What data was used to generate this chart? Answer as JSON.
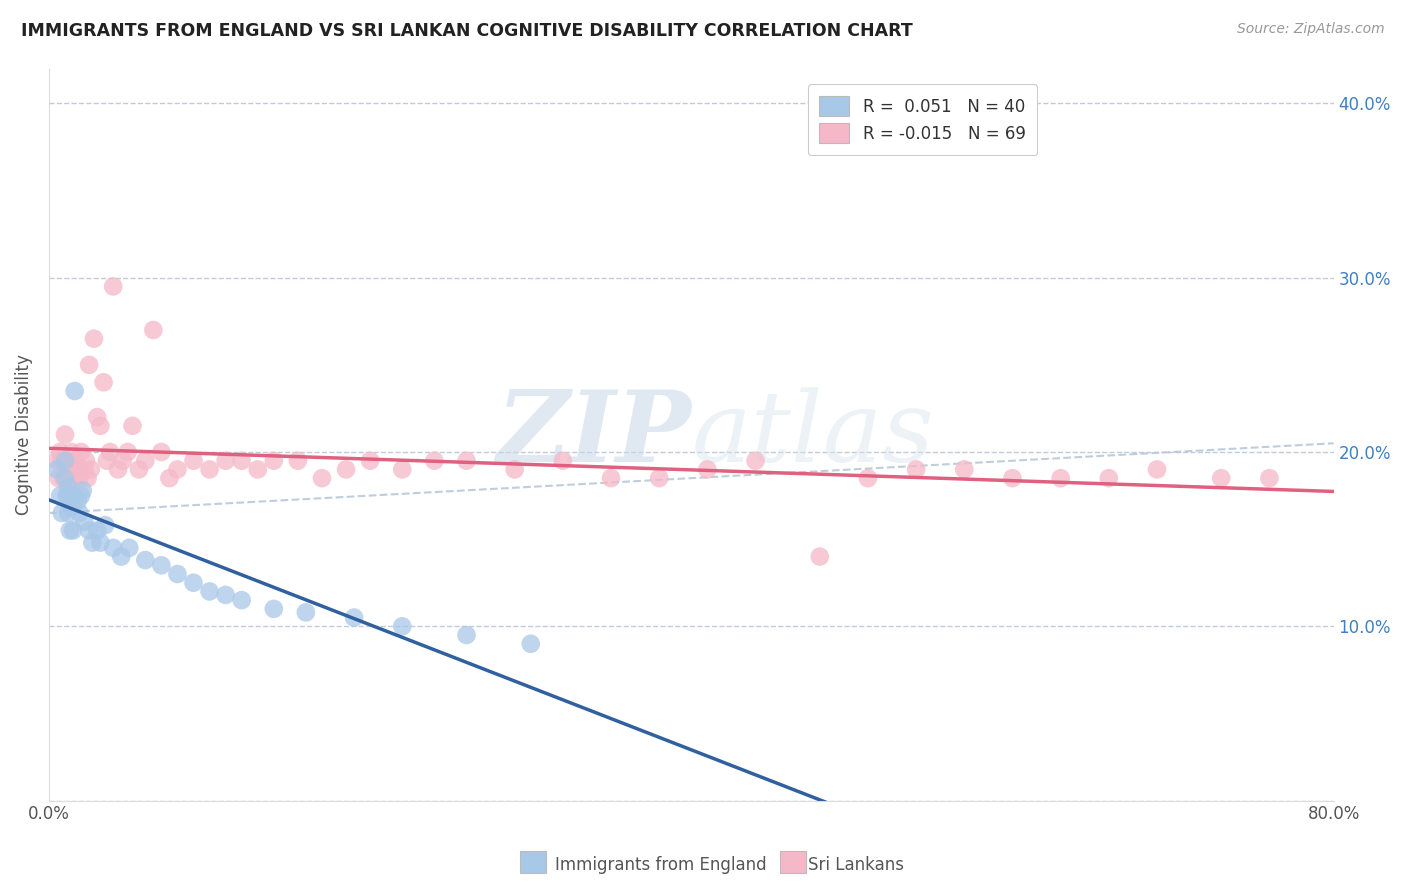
{
  "title": "IMMIGRANTS FROM ENGLAND VS SRI LANKAN COGNITIVE DISABILITY CORRELATION CHART",
  "source": "Source: ZipAtlas.com",
  "ylabel": "Cognitive Disability",
  "label_england": "Immigrants from England",
  "label_srilanka": "Sri Lankans",
  "legend_line1": "R =  0.051   N = 40",
  "legend_line2": "R = -0.015   N = 69",
  "watermark_zip": "ZIP",
  "watermark_atlas": "atlas",
  "blue_color": "#a8c8e8",
  "pink_color": "#f5b8c8",
  "blue_line_color": "#3060a0",
  "pink_line_color": "#e06080",
  "dashed_line_color": "#b8c8d8",
  "background_color": "#ffffff",
  "grid_color": "#c0ccdd",
  "xlim": [
    0.0,
    0.8
  ],
  "ylim": [
    0.0,
    0.42
  ],
  "x_ticks": [
    0.0,
    0.1,
    0.2,
    0.3,
    0.4,
    0.5,
    0.6,
    0.7,
    0.8
  ],
  "y_ticks": [
    0.0,
    0.1,
    0.2,
    0.3,
    0.4
  ],
  "y_tick_labels": [
    "",
    "10.0%",
    "20.0%",
    "30.0%",
    "40.0%"
  ],
  "x_tick_labels": [
    "0.0%",
    "",
    "",
    "",
    "",
    "",
    "",
    "",
    "80.0%"
  ],
  "blue_x": [
    0.005,
    0.007,
    0.008,
    0.01,
    0.01,
    0.011,
    0.012,
    0.012,
    0.013,
    0.013,
    0.014,
    0.015,
    0.015,
    0.016,
    0.018,
    0.019,
    0.02,
    0.021,
    0.022,
    0.025,
    0.027,
    0.03,
    0.032,
    0.035,
    0.04,
    0.045,
    0.05,
    0.06,
    0.07,
    0.08,
    0.09,
    0.1,
    0.11,
    0.12,
    0.14,
    0.16,
    0.19,
    0.22,
    0.26,
    0.3
  ],
  "blue_y": [
    0.19,
    0.175,
    0.165,
    0.185,
    0.195,
    0.175,
    0.18,
    0.165,
    0.175,
    0.155,
    0.168,
    0.175,
    0.155,
    0.235,
    0.172,
    0.165,
    0.175,
    0.178,
    0.16,
    0.155,
    0.148,
    0.155,
    0.148,
    0.158,
    0.145,
    0.14,
    0.145,
    0.138,
    0.135,
    0.13,
    0.125,
    0.12,
    0.118,
    0.115,
    0.11,
    0.108,
    0.105,
    0.1,
    0.095,
    0.09
  ],
  "pink_x": [
    0.005,
    0.006,
    0.007,
    0.008,
    0.009,
    0.01,
    0.01,
    0.011,
    0.012,
    0.012,
    0.013,
    0.014,
    0.015,
    0.016,
    0.017,
    0.018,
    0.019,
    0.02,
    0.022,
    0.023,
    0.024,
    0.025,
    0.026,
    0.028,
    0.03,
    0.032,
    0.034,
    0.036,
    0.038,
    0.04,
    0.043,
    0.046,
    0.049,
    0.052,
    0.056,
    0.06,
    0.065,
    0.07,
    0.075,
    0.08,
    0.09,
    0.1,
    0.11,
    0.12,
    0.13,
    0.14,
    0.155,
    0.17,
    0.185,
    0.2,
    0.22,
    0.24,
    0.26,
    0.29,
    0.32,
    0.35,
    0.38,
    0.41,
    0.44,
    0.48,
    0.51,
    0.54,
    0.57,
    0.6,
    0.63,
    0.66,
    0.69,
    0.73,
    0.76
  ],
  "pink_y": [
    0.195,
    0.185,
    0.2,
    0.195,
    0.185,
    0.21,
    0.195,
    0.185,
    0.195,
    0.175,
    0.185,
    0.2,
    0.19,
    0.195,
    0.185,
    0.19,
    0.185,
    0.2,
    0.19,
    0.195,
    0.185,
    0.25,
    0.19,
    0.265,
    0.22,
    0.215,
    0.24,
    0.195,
    0.2,
    0.295,
    0.19,
    0.195,
    0.2,
    0.215,
    0.19,
    0.195,
    0.27,
    0.2,
    0.185,
    0.19,
    0.195,
    0.19,
    0.195,
    0.195,
    0.19,
    0.195,
    0.195,
    0.185,
    0.19,
    0.195,
    0.19,
    0.195,
    0.195,
    0.19,
    0.195,
    0.185,
    0.185,
    0.19,
    0.195,
    0.14,
    0.185,
    0.19,
    0.19,
    0.185,
    0.185,
    0.185,
    0.19,
    0.185,
    0.185
  ]
}
